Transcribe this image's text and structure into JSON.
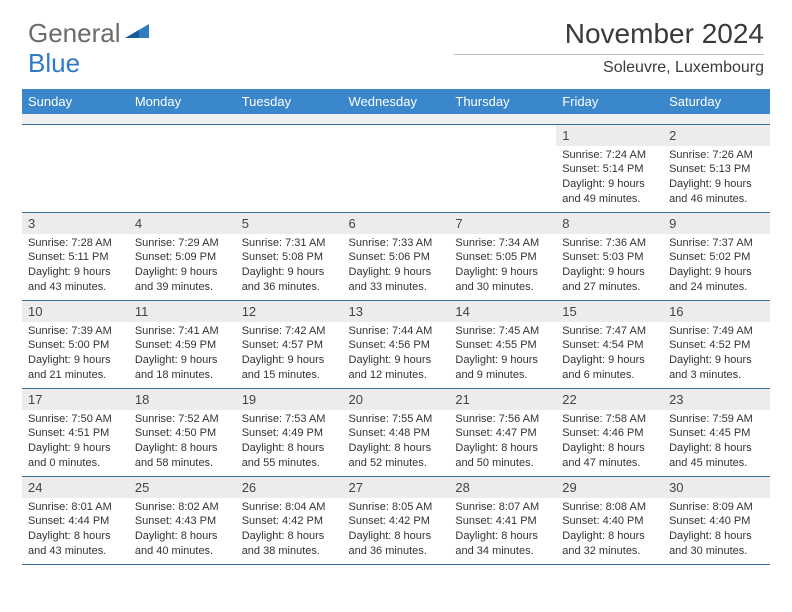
{
  "logo": {
    "text1": "General",
    "text2": "Blue"
  },
  "title": "November 2024",
  "location": "Soleuvre, Luxembourg",
  "colors": {
    "header_bg": "#3a87cc",
    "header_text": "#ffffff",
    "row_border": "#3a6ea5",
    "daynum_bg": "#ececec",
    "logo_blue": "#2f7bc4",
    "logo_gray": "#6b6b6b"
  },
  "daynames": [
    "Sunday",
    "Monday",
    "Tuesday",
    "Wednesday",
    "Thursday",
    "Friday",
    "Saturday"
  ],
  "weeks": [
    [
      {
        "n": "",
        "sunrise": "",
        "sunset": "",
        "daylight": ""
      },
      {
        "n": "",
        "sunrise": "",
        "sunset": "",
        "daylight": ""
      },
      {
        "n": "",
        "sunrise": "",
        "sunset": "",
        "daylight": ""
      },
      {
        "n": "",
        "sunrise": "",
        "sunset": "",
        "daylight": ""
      },
      {
        "n": "",
        "sunrise": "",
        "sunset": "",
        "daylight": ""
      },
      {
        "n": "1",
        "sunrise": "Sunrise: 7:24 AM",
        "sunset": "Sunset: 5:14 PM",
        "daylight": "Daylight: 9 hours and 49 minutes."
      },
      {
        "n": "2",
        "sunrise": "Sunrise: 7:26 AM",
        "sunset": "Sunset: 5:13 PM",
        "daylight": "Daylight: 9 hours and 46 minutes."
      }
    ],
    [
      {
        "n": "3",
        "sunrise": "Sunrise: 7:28 AM",
        "sunset": "Sunset: 5:11 PM",
        "daylight": "Daylight: 9 hours and 43 minutes."
      },
      {
        "n": "4",
        "sunrise": "Sunrise: 7:29 AM",
        "sunset": "Sunset: 5:09 PM",
        "daylight": "Daylight: 9 hours and 39 minutes."
      },
      {
        "n": "5",
        "sunrise": "Sunrise: 7:31 AM",
        "sunset": "Sunset: 5:08 PM",
        "daylight": "Daylight: 9 hours and 36 minutes."
      },
      {
        "n": "6",
        "sunrise": "Sunrise: 7:33 AM",
        "sunset": "Sunset: 5:06 PM",
        "daylight": "Daylight: 9 hours and 33 minutes."
      },
      {
        "n": "7",
        "sunrise": "Sunrise: 7:34 AM",
        "sunset": "Sunset: 5:05 PM",
        "daylight": "Daylight: 9 hours and 30 minutes."
      },
      {
        "n": "8",
        "sunrise": "Sunrise: 7:36 AM",
        "sunset": "Sunset: 5:03 PM",
        "daylight": "Daylight: 9 hours and 27 minutes."
      },
      {
        "n": "9",
        "sunrise": "Sunrise: 7:37 AM",
        "sunset": "Sunset: 5:02 PM",
        "daylight": "Daylight: 9 hours and 24 minutes."
      }
    ],
    [
      {
        "n": "10",
        "sunrise": "Sunrise: 7:39 AM",
        "sunset": "Sunset: 5:00 PM",
        "daylight": "Daylight: 9 hours and 21 minutes."
      },
      {
        "n": "11",
        "sunrise": "Sunrise: 7:41 AM",
        "sunset": "Sunset: 4:59 PM",
        "daylight": "Daylight: 9 hours and 18 minutes."
      },
      {
        "n": "12",
        "sunrise": "Sunrise: 7:42 AM",
        "sunset": "Sunset: 4:57 PM",
        "daylight": "Daylight: 9 hours and 15 minutes."
      },
      {
        "n": "13",
        "sunrise": "Sunrise: 7:44 AM",
        "sunset": "Sunset: 4:56 PM",
        "daylight": "Daylight: 9 hours and 12 minutes."
      },
      {
        "n": "14",
        "sunrise": "Sunrise: 7:45 AM",
        "sunset": "Sunset: 4:55 PM",
        "daylight": "Daylight: 9 hours and 9 minutes."
      },
      {
        "n": "15",
        "sunrise": "Sunrise: 7:47 AM",
        "sunset": "Sunset: 4:54 PM",
        "daylight": "Daylight: 9 hours and 6 minutes."
      },
      {
        "n": "16",
        "sunrise": "Sunrise: 7:49 AM",
        "sunset": "Sunset: 4:52 PM",
        "daylight": "Daylight: 9 hours and 3 minutes."
      }
    ],
    [
      {
        "n": "17",
        "sunrise": "Sunrise: 7:50 AM",
        "sunset": "Sunset: 4:51 PM",
        "daylight": "Daylight: 9 hours and 0 minutes."
      },
      {
        "n": "18",
        "sunrise": "Sunrise: 7:52 AM",
        "sunset": "Sunset: 4:50 PM",
        "daylight": "Daylight: 8 hours and 58 minutes."
      },
      {
        "n": "19",
        "sunrise": "Sunrise: 7:53 AM",
        "sunset": "Sunset: 4:49 PM",
        "daylight": "Daylight: 8 hours and 55 minutes."
      },
      {
        "n": "20",
        "sunrise": "Sunrise: 7:55 AM",
        "sunset": "Sunset: 4:48 PM",
        "daylight": "Daylight: 8 hours and 52 minutes."
      },
      {
        "n": "21",
        "sunrise": "Sunrise: 7:56 AM",
        "sunset": "Sunset: 4:47 PM",
        "daylight": "Daylight: 8 hours and 50 minutes."
      },
      {
        "n": "22",
        "sunrise": "Sunrise: 7:58 AM",
        "sunset": "Sunset: 4:46 PM",
        "daylight": "Daylight: 8 hours and 47 minutes."
      },
      {
        "n": "23",
        "sunrise": "Sunrise: 7:59 AM",
        "sunset": "Sunset: 4:45 PM",
        "daylight": "Daylight: 8 hours and 45 minutes."
      }
    ],
    [
      {
        "n": "24",
        "sunrise": "Sunrise: 8:01 AM",
        "sunset": "Sunset: 4:44 PM",
        "daylight": "Daylight: 8 hours and 43 minutes."
      },
      {
        "n": "25",
        "sunrise": "Sunrise: 8:02 AM",
        "sunset": "Sunset: 4:43 PM",
        "daylight": "Daylight: 8 hours and 40 minutes."
      },
      {
        "n": "26",
        "sunrise": "Sunrise: 8:04 AM",
        "sunset": "Sunset: 4:42 PM",
        "daylight": "Daylight: 8 hours and 38 minutes."
      },
      {
        "n": "27",
        "sunrise": "Sunrise: 8:05 AM",
        "sunset": "Sunset: 4:42 PM",
        "daylight": "Daylight: 8 hours and 36 minutes."
      },
      {
        "n": "28",
        "sunrise": "Sunrise: 8:07 AM",
        "sunset": "Sunset: 4:41 PM",
        "daylight": "Daylight: 8 hours and 34 minutes."
      },
      {
        "n": "29",
        "sunrise": "Sunrise: 8:08 AM",
        "sunset": "Sunset: 4:40 PM",
        "daylight": "Daylight: 8 hours and 32 minutes."
      },
      {
        "n": "30",
        "sunrise": "Sunrise: 8:09 AM",
        "sunset": "Sunset: 4:40 PM",
        "daylight": "Daylight: 8 hours and 30 minutes."
      }
    ]
  ]
}
